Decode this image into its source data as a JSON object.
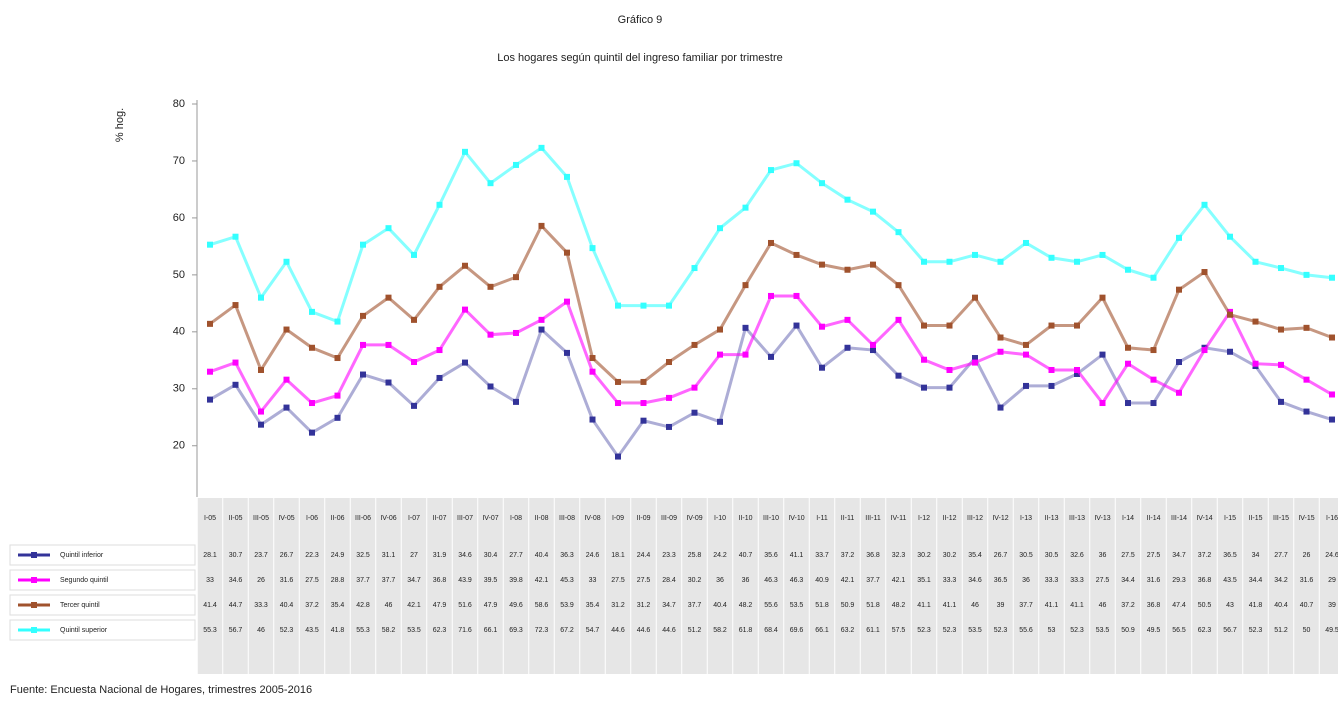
{
  "chart_data": {
    "type": "line",
    "title": "Gráfico 9",
    "subtitle": "Los hogares según quintil del ingreso familiar por trimestre",
    "y_label": "% hog.",
    "source": "Fuente: Encuesta Nacional de Hogares, trimestres 2005-2016",
    "categories": [
      "I-05",
      "II-05",
      "III-05",
      "IV-05",
      "I-06",
      "II-06",
      "III-06",
      "IV-06",
      "I-07",
      "II-07",
      "III-07",
      "IV-07",
      "I-08",
      "II-08",
      "III-08",
      "IV-08",
      "I-09",
      "II-09",
      "III-09",
      "IV-09",
      "I-10",
      "II-10",
      "III-10",
      "IV-10",
      "I-11",
      "II-11",
      "III-11",
      "IV-11",
      "I-12",
      "II-12",
      "III-12",
      "IV-12",
      "I-13",
      "II-13",
      "III-13",
      "IV-13",
      "I-14",
      "II-14",
      "III-14",
      "IV-14",
      "I-15",
      "II-15",
      "III-15",
      "IV-15",
      "I-16"
    ],
    "ylim": [
      11,
      80
    ],
    "yticks": [
      20,
      30,
      40,
      50,
      60,
      70,
      80
    ],
    "series": [
      {
        "name": "Quintil inferior",
        "color": "#333399",
        "values": [
          28.1,
          30.7,
          23.7,
          26.7,
          22.3,
          24.9,
          32.5,
          31.1,
          27.0,
          31.9,
          34.6,
          30.4,
          27.7,
          40.4,
          36.3,
          24.6,
          18.1,
          24.4,
          23.3,
          25.8,
          24.2,
          40.7,
          35.6,
          41.1,
          33.7,
          37.2,
          36.8,
          32.3,
          30.2,
          30.2,
          35.4,
          26.7,
          30.5,
          30.5,
          32.6,
          36.0,
          27.5,
          27.5,
          34.7,
          37.2,
          36.5,
          34.0,
          27.7,
          26.0,
          24.6
        ]
      },
      {
        "name": "Segundo quintil",
        "color": "#ff00ff",
        "values": [
          33.0,
          34.6,
          26.0,
          31.6,
          27.5,
          28.8,
          37.7,
          37.7,
          34.7,
          36.8,
          43.9,
          39.5,
          39.8,
          42.1,
          45.3,
          33.0,
          27.5,
          27.5,
          28.4,
          30.2,
          36.0,
          36.0,
          46.3,
          46.3,
          40.9,
          42.1,
          37.7,
          42.1,
          35.1,
          33.3,
          34.6,
          36.5,
          36.0,
          33.3,
          33.3,
          27.5,
          34.4,
          31.6,
          29.3,
          36.8,
          43.5,
          34.4,
          34.2,
          31.6,
          29.0
        ]
      },
      {
        "name": "Tercer quintil",
        "color": "#a0522d",
        "values": [
          41.4,
          44.7,
          33.3,
          40.4,
          37.2,
          35.4,
          42.8,
          46.0,
          42.1,
          47.9,
          51.6,
          47.9,
          49.6,
          58.6,
          53.9,
          35.4,
          31.2,
          31.2,
          34.7,
          37.7,
          40.4,
          48.2,
          55.6,
          53.5,
          51.8,
          50.9,
          51.8,
          48.2,
          41.1,
          41.1,
          46.0,
          39.0,
          37.7,
          41.1,
          41.1,
          46.0,
          37.2,
          36.8,
          47.4,
          50.5,
          43.0,
          41.8,
          40.4,
          40.7,
          39.0
        ]
      },
      {
        "name": "Quintil superior",
        "color": "#33ffff",
        "values": [
          55.3,
          56.7,
          46.0,
          52.3,
          43.5,
          41.8,
          55.3,
          58.2,
          53.5,
          62.3,
          71.6,
          66.1,
          69.3,
          72.3,
          67.2,
          54.7,
          44.6,
          44.6,
          44.6,
          51.2,
          58.2,
          61.8,
          68.4,
          69.6,
          66.1,
          63.2,
          61.1,
          57.5,
          52.3,
          52.3,
          53.5,
          52.3,
          55.6,
          53.0,
          52.3,
          53.5,
          50.9,
          49.5,
          56.5,
          62.3,
          56.7,
          52.3,
          51.2,
          50.0,
          49.5
        ]
      }
    ]
  }
}
